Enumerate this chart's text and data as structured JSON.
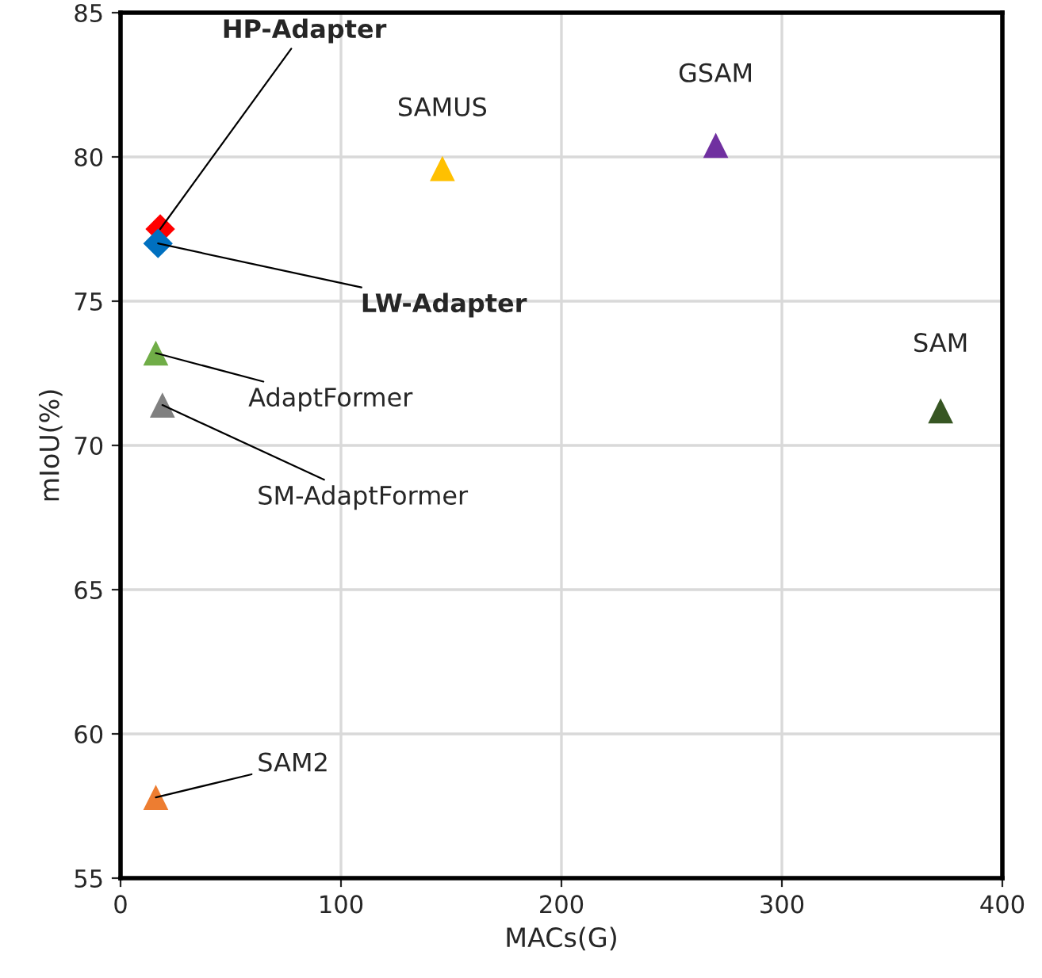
{
  "chart_data": {
    "type": "scatter",
    "xlabel": "MACs(G)",
    "ylabel": "mIoU(%)",
    "xlim": [
      0,
      400
    ],
    "xticks": [
      0,
      100,
      200,
      300,
      400
    ],
    "ylim": [
      55,
      85
    ],
    "yticks": [
      55,
      60,
      65,
      70,
      75,
      80,
      85
    ],
    "grid": true,
    "legend": false,
    "series": [
      {
        "name": "HP-Adapter",
        "color": "#ff0000",
        "marker": "diamond",
        "x": [
          18
        ],
        "values": [
          77.5
        ]
      },
      {
        "name": "LW-Adapter",
        "color": "#0070c0",
        "marker": "diamond",
        "x": [
          17
        ],
        "values": [
          77.0
        ]
      },
      {
        "name": "AdaptFormer",
        "color": "#70ad47",
        "marker": "triangle",
        "x": [
          16
        ],
        "values": [
          73.2
        ]
      },
      {
        "name": "SM-AdaptFormer",
        "color": "#808080",
        "marker": "triangle",
        "x": [
          19
        ],
        "values": [
          71.4
        ]
      },
      {
        "name": "SAM2",
        "color": "#ed7d31",
        "marker": "triangle",
        "x": [
          16
        ],
        "values": [
          57.8
        ]
      },
      {
        "name": "SAMUS",
        "color": "#ffc000",
        "marker": "triangle",
        "x": [
          146
        ],
        "values": [
          79.6
        ]
      },
      {
        "name": "GSAM",
        "color": "#7030a0",
        "marker": "triangle",
        "x": [
          270
        ],
        "values": [
          80.4
        ]
      },
      {
        "name": "SAM",
        "color": "#375623",
        "marker": "triangle",
        "x": [
          372
        ],
        "values": [
          71.2
        ]
      }
    ]
  }
}
